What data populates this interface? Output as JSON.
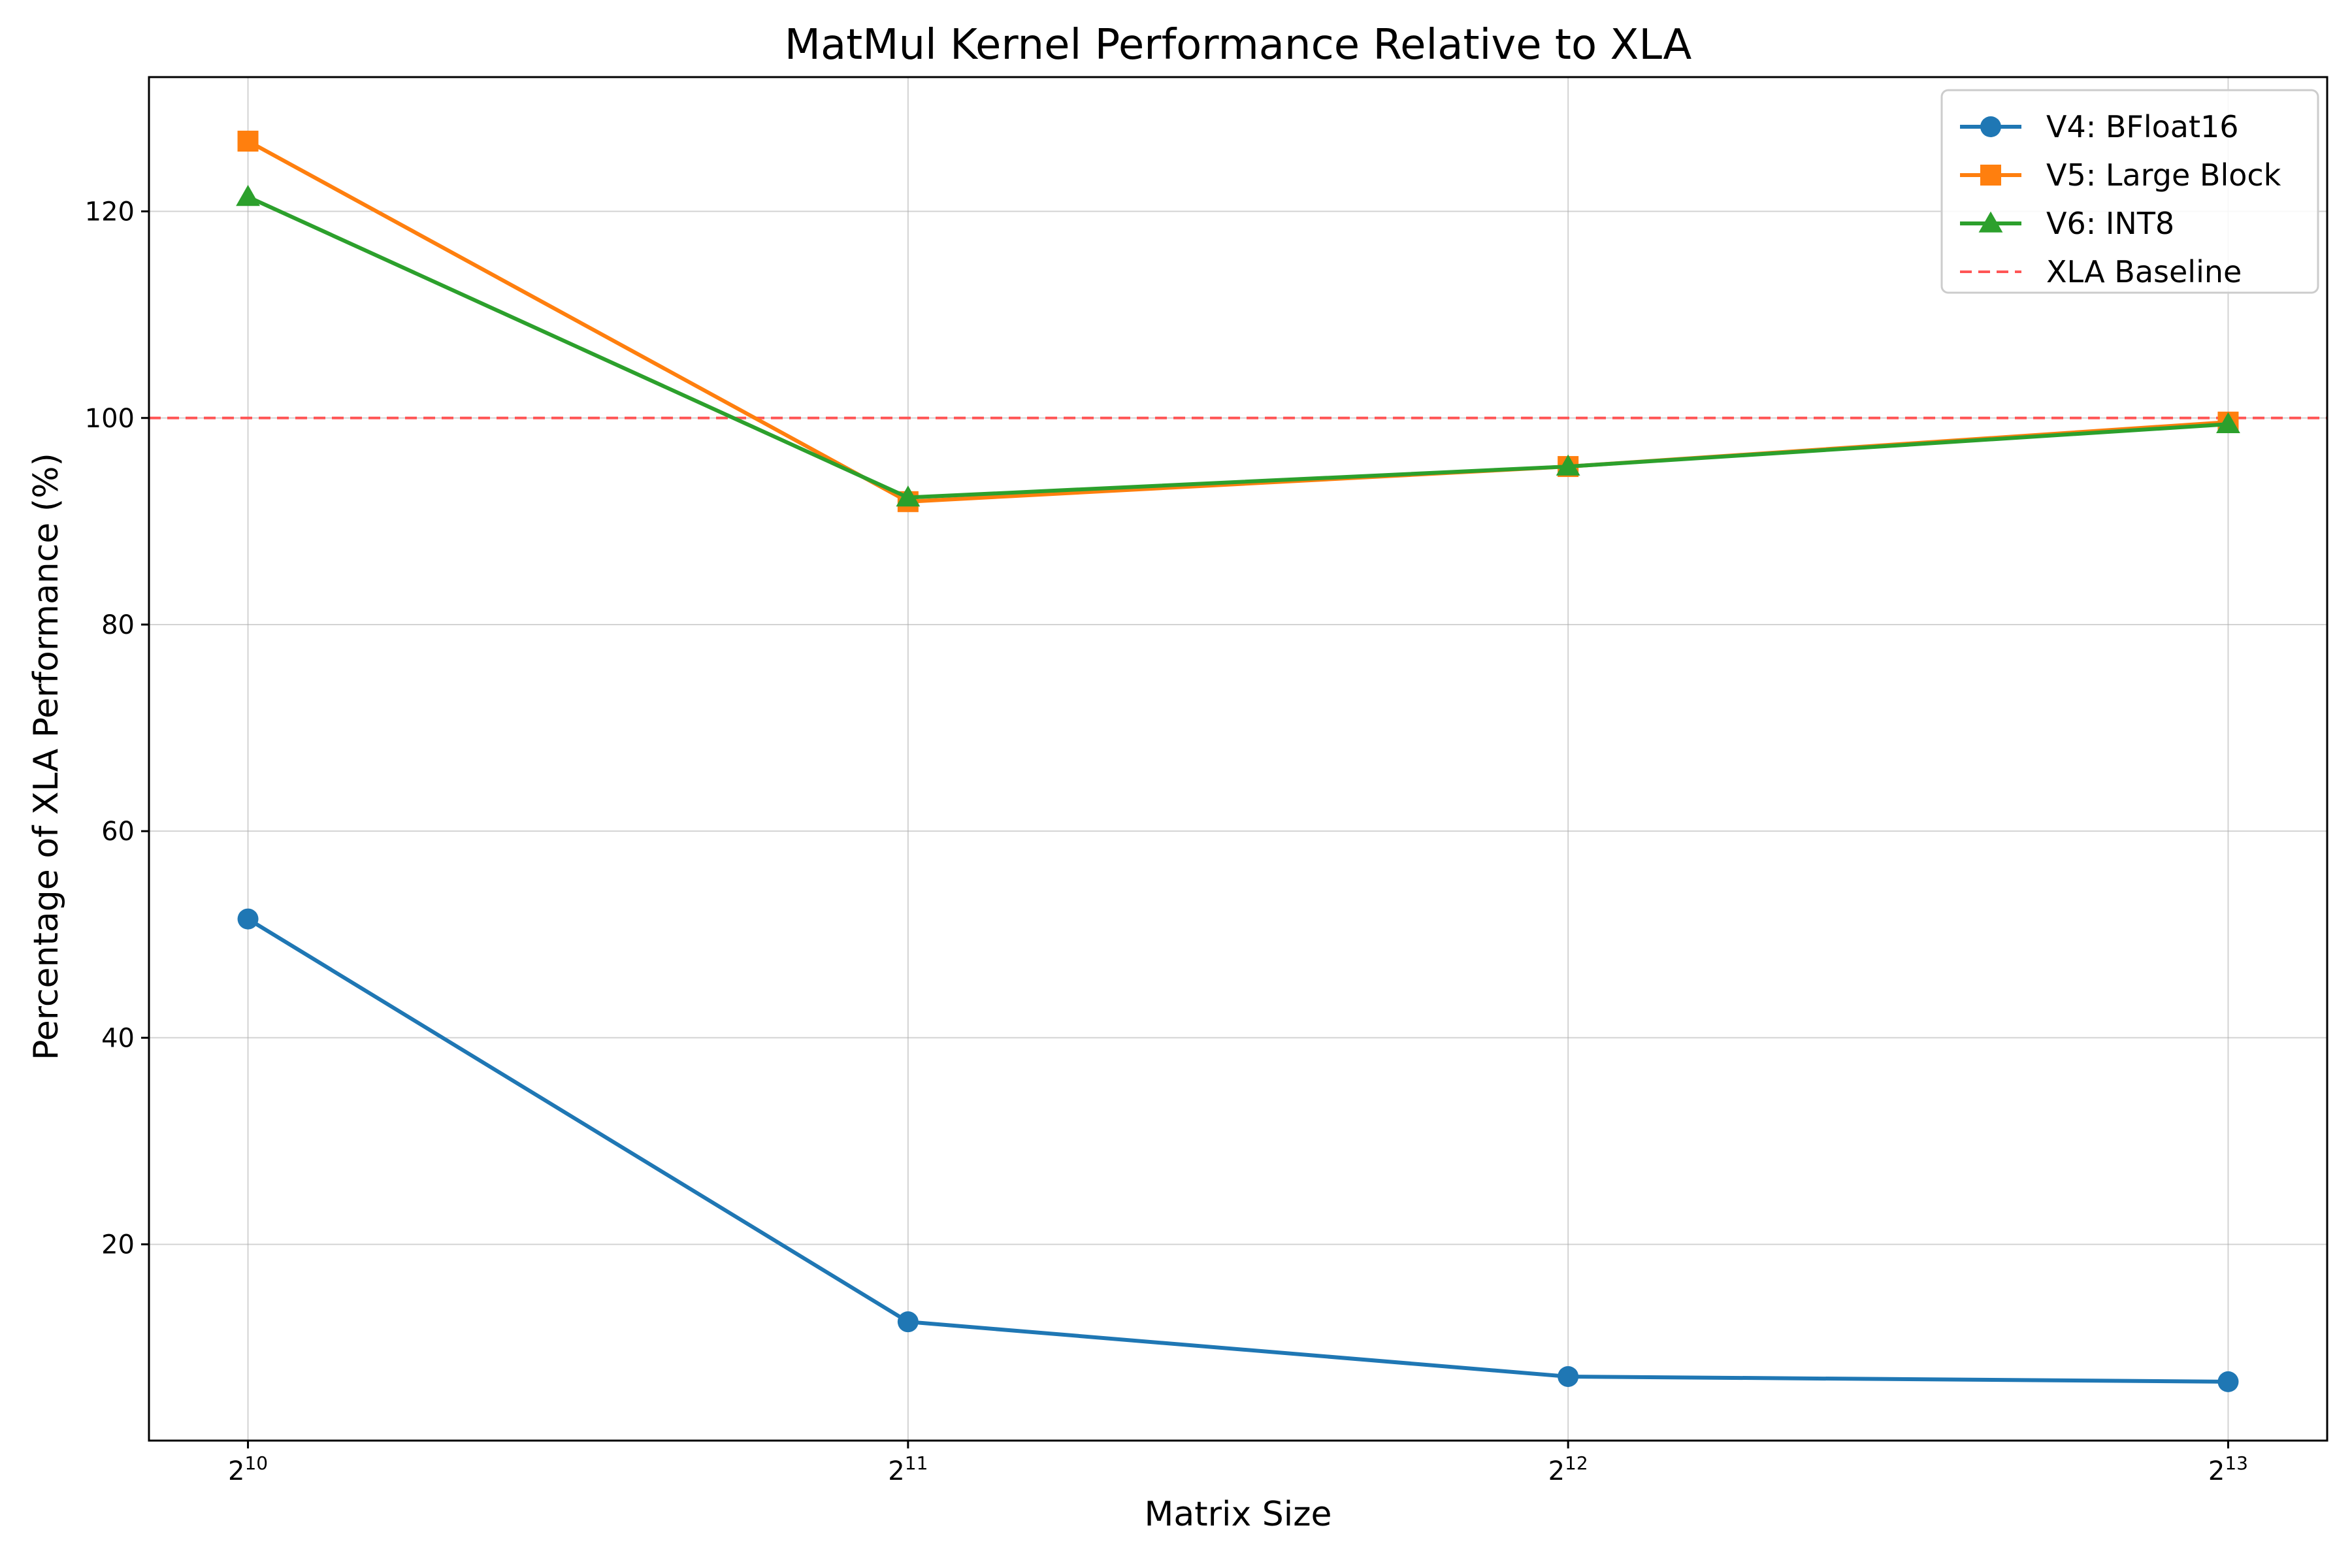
{
  "chart_data": {
    "type": "line",
    "title": "MatMul Kernel Performance Relative to XLA",
    "xlabel": "Matrix Size",
    "ylabel": "Percentage of XLA Performance (%)",
    "x_scale": "log2",
    "x": [
      1024,
      2048,
      4096,
      8192
    ],
    "x_ticks": [
      {
        "base": "2",
        "exp": "10"
      },
      {
        "base": "2",
        "exp": "11"
      },
      {
        "base": "2",
        "exp": "12"
      },
      {
        "base": "2",
        "exp": "13"
      }
    ],
    "y_ticks": [
      20,
      40,
      60,
      80,
      100,
      120
    ],
    "ylim": [
      1,
      133
    ],
    "grid": true,
    "legend_position": "top-right",
    "series": [
      {
        "name": "V4: BFloat16",
        "values": [
          51.5,
          12.5,
          7.2,
          6.7
        ],
        "color": "#1f77b4",
        "marker": "circle"
      },
      {
        "name": "V5: Large Block",
        "values": [
          126.8,
          91.9,
          95.3,
          99.6
        ],
        "color": "#ff7f0e",
        "marker": "square"
      },
      {
        "name": "V6: INT8",
        "values": [
          121.4,
          92.3,
          95.3,
          99.4
        ],
        "color": "#2ca02c",
        "marker": "triangle"
      }
    ],
    "baseline": {
      "name": "XLA Baseline",
      "value": 100,
      "color": "#ff5555",
      "style": "dashed"
    }
  }
}
